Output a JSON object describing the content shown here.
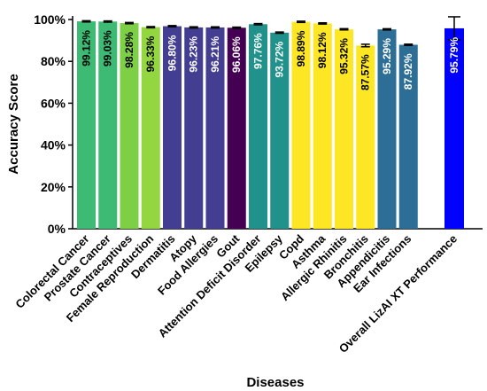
{
  "chart_data": {
    "type": "bar",
    "xlabel": "Diseases",
    "ylabel": "Accuracy Score",
    "ylim": [
      0,
      100
    ],
    "yticks": [
      0,
      20,
      40,
      60,
      80,
      100
    ],
    "ytick_labels": [
      "0%",
      "20%",
      "40%",
      "60%",
      "80%",
      "100%"
    ],
    "grid": false,
    "categories": [
      "Colorectal Cancer",
      "Prostate Cancer",
      "Contraceptives",
      "Female Reproduction",
      "Dermatitis",
      "Atopy",
      "Food Allergies",
      "Gout",
      "Attention Deficit Disorder",
      "Epilepsy",
      "Copd",
      "Asthma",
      "Allergic Rhinitis",
      "Bronchitis",
      "Appendicitis",
      "Ear Infections",
      "Overall LizAI XT Performance"
    ],
    "values": [
      99.12,
      99.03,
      98.28,
      96.33,
      96.8,
      96.23,
      96.21,
      96.06,
      97.76,
      93.72,
      98.89,
      98.12,
      95.32,
      87.57,
      95.29,
      87.92,
      95.79
    ],
    "value_labels": [
      "99.12%",
      "99.03%",
      "98.28%",
      "96.33%",
      "96.80%",
      "96.23%",
      "96.21%",
      "96.06%",
      "97.76%",
      "93.72%",
      "98.89%",
      "98.12%",
      "95.32%",
      "87.57%",
      "95.29%",
      "87.92%",
      "95.79%"
    ],
    "error_bars": [
      0.3,
      0.3,
      0.3,
      0.3,
      0.3,
      0.3,
      0.3,
      0.3,
      0.3,
      0.3,
      0.3,
      0.3,
      0.3,
      0.6,
      0.3,
      0.3,
      5.5
    ],
    "colors": [
      "#3dbb74",
      "#3dbb74",
      "#7dcf45",
      "#94d640",
      "#433e92",
      "#433e92",
      "#433e92",
      "#440154",
      "#21918c",
      "#21918c",
      "#fde725",
      "#fde725",
      "#fde725",
      "#fde725",
      "#2c6e95",
      "#2c6e95",
      "#0000ff"
    ],
    "label_colors": [
      "#000000",
      "#000000",
      "#000000",
      "#000000",
      "#ffffff",
      "#ffffff",
      "#ffffff",
      "#ffffff",
      "#ffffff",
      "#ffffff",
      "#000000",
      "#000000",
      "#000000",
      "#000000",
      "#ffffff",
      "#ffffff",
      "#ffffff"
    ]
  }
}
